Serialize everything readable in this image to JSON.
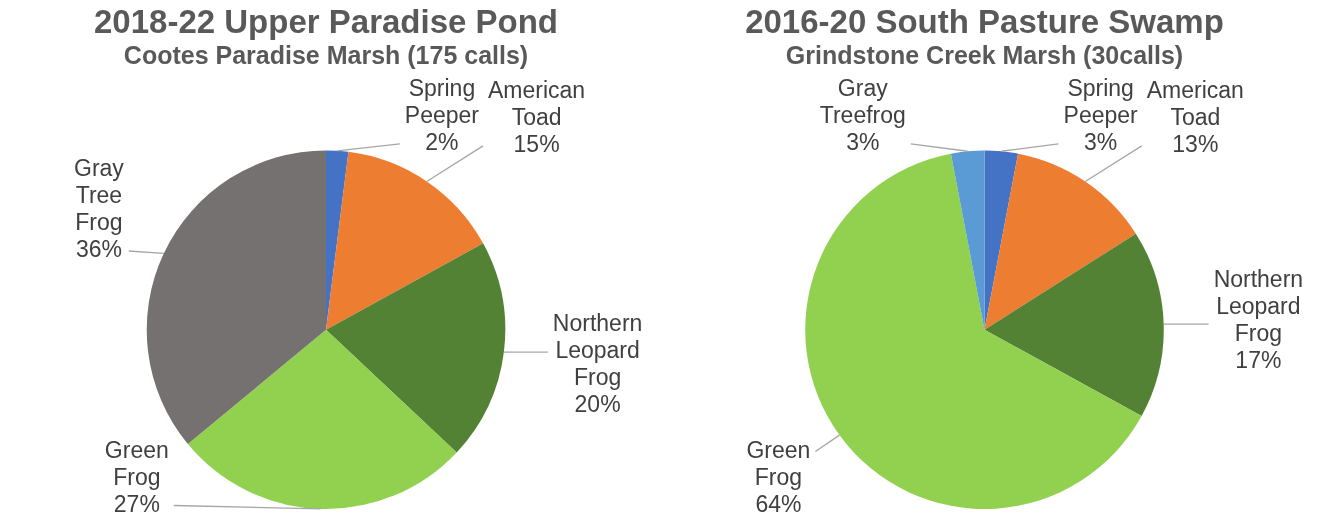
{
  "chart_data": [
    {
      "type": "pie",
      "title": "2018-22 Upper Paradise Pond",
      "subtitle": "Cootes Paradise Marsh (175 calls)",
      "categories": [
        "Spring Peeper",
        "American Toad",
        "Northern Leopard Frog",
        "Green Frog",
        "Gray Tree Frog"
      ],
      "values": [
        2,
        15,
        20,
        27,
        36
      ],
      "value_labels": [
        "2%",
        "15%",
        "20%",
        "27%",
        "36%"
      ],
      "colors": [
        "#4472c4",
        "#ed7d31",
        "#548235",
        "#92d050",
        "#767171"
      ]
    },
    {
      "type": "pie",
      "title": "2016-20 South Pasture Swamp",
      "subtitle": "Grindstone Creek Marsh (30calls)",
      "categories": [
        "Spring Peeper",
        "American Toad",
        "Northern Leopard Frog",
        "Green Frog",
        "Gray Treefrog"
      ],
      "values": [
        3,
        13,
        17,
        64,
        3
      ],
      "value_labels": [
        "3%",
        "13%",
        "17%",
        "64%",
        "3%"
      ],
      "colors": [
        "#4472c4",
        "#ed7d31",
        "#548235",
        "#92d050",
        "#5b9bd5"
      ]
    }
  ]
}
